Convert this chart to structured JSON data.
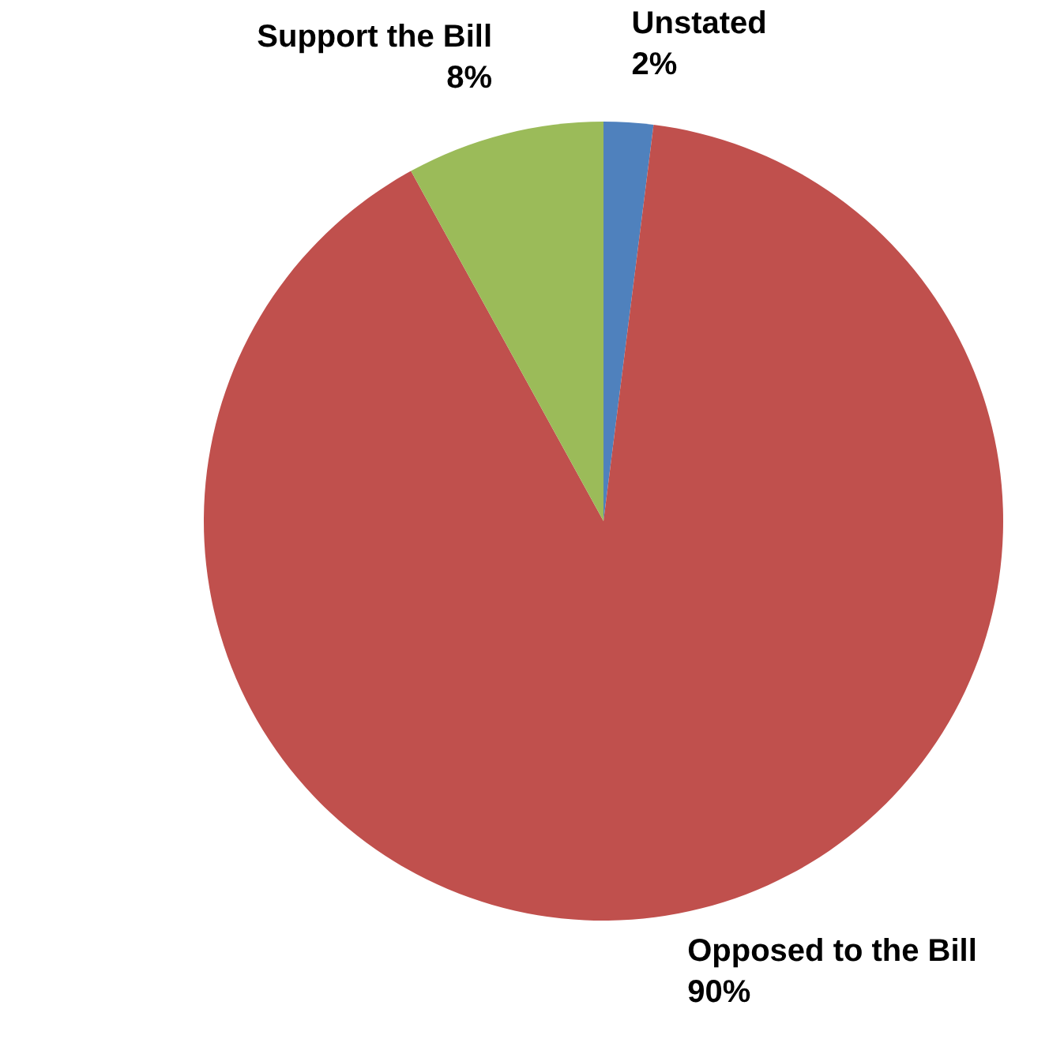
{
  "chart_data": {
    "type": "pie",
    "categories": [
      "Unstated",
      "Opposed to the Bill",
      "Support the Bill"
    ],
    "values": [
      2,
      90,
      8
    ],
    "colors": [
      "#4f81bd",
      "#c0504d",
      "#9bbb59"
    ],
    "value_labels": [
      "2%",
      "90%",
      "8%"
    ]
  }
}
